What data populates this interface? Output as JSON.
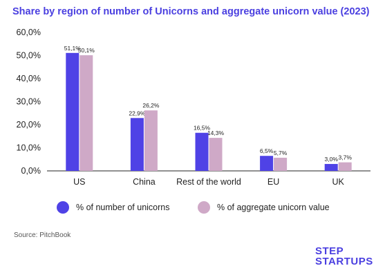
{
  "title": "Share by region of number of Unicorns and aggregate unicorn value (2023)",
  "source": "Source: PitchBook",
  "logo": {
    "line1": "STEP",
    "line2": "STARTUPS"
  },
  "colors": {
    "series1": "#4f42e6",
    "series2": "#cfa9c7",
    "accent": "#4a3fe0"
  },
  "chart_data": {
    "type": "bar",
    "categories": [
      "US",
      "China",
      "Rest of the world",
      "EU",
      "UK"
    ],
    "series": [
      {
        "name": "% of number of unicorns",
        "values": [
          51.1,
          22.9,
          16.5,
          6.5,
          3.0
        ],
        "labels": [
          "51,1%",
          "22,9%",
          "16,5%",
          "6,5%",
          "3,0%"
        ]
      },
      {
        "name": "% of aggregate unicorn value",
        "values": [
          50.1,
          26.2,
          14.3,
          5.7,
          3.7
        ],
        "labels": [
          "50,1%",
          "26,2%",
          "14,3%",
          "5,7%",
          "3,7%"
        ]
      }
    ],
    "yticks": [
      "0,0%",
      "10,0%",
      "20,0%",
      "30,0%",
      "40,0%",
      "50,0%",
      "60,0%"
    ],
    "ylim": [
      0,
      60
    ],
    "grid": false,
    "legend": "bottom"
  }
}
